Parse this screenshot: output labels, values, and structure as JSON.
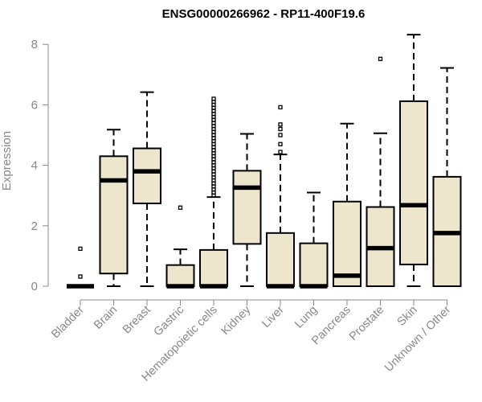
{
  "chart_data": {
    "type": "boxplot",
    "title": "ENSG00000266962 - RP11-400F19.6",
    "xlabel": "",
    "ylabel": "Expression",
    "ylim": [
      0,
      8.4
    ],
    "yticks": [
      0,
      2,
      4,
      6,
      8
    ],
    "box_fill": "#ede6cc",
    "groups": [
      {
        "name": "Bladder",
        "min": 0,
        "q1": 0,
        "median": 0,
        "q3": 0,
        "max": 0,
        "outliers": [
          0.32,
          1.24
        ]
      },
      {
        "name": "Brain",
        "min": 0,
        "q1": 0.42,
        "median": 3.5,
        "q3": 4.3,
        "max": 5.18,
        "outliers": []
      },
      {
        "name": "Breast",
        "min": 0,
        "q1": 2.74,
        "median": 3.8,
        "q3": 4.56,
        "max": 6.42,
        "outliers": []
      },
      {
        "name": "Gastric",
        "min": 0,
        "q1": 0,
        "median": 0,
        "q3": 0.7,
        "max": 1.22,
        "outliers": [
          2.6
        ]
      },
      {
        "name": "Hematopoietic cells",
        "min": 0,
        "q1": 0,
        "median": 0,
        "q3": 1.2,
        "max": 2.95,
        "outliers": [
          3.0,
          3.1,
          3.2,
          3.3,
          3.4,
          3.5,
          3.6,
          3.7,
          3.8,
          3.9,
          4.0,
          4.1,
          4.2,
          4.3,
          4.4,
          4.5,
          4.6,
          4.7,
          4.8,
          4.9,
          5.0,
          5.1,
          5.2,
          5.3,
          5.4,
          5.5,
          5.6,
          5.7,
          5.8,
          5.9,
          6.0,
          6.1,
          6.2
        ]
      },
      {
        "name": "Kidney",
        "min": 0,
        "q1": 1.4,
        "median": 3.26,
        "q3": 3.82,
        "max": 5.04,
        "outliers": []
      },
      {
        "name": "Liver",
        "min": 0,
        "q1": 0,
        "median": 0,
        "q3": 1.76,
        "max": 4.36,
        "outliers": [
          4.44,
          4.7,
          5.0,
          5.2,
          5.35,
          5.92
        ]
      },
      {
        "name": "Lung",
        "min": 0,
        "q1": 0,
        "median": 0,
        "q3": 1.42,
        "max": 3.1,
        "outliers": []
      },
      {
        "name": "Pancreas",
        "min": 0,
        "q1": 0,
        "median": 0.35,
        "q3": 2.8,
        "max": 5.38,
        "outliers": []
      },
      {
        "name": "Prostate",
        "min": 0,
        "q1": 0,
        "median": 1.26,
        "q3": 2.62,
        "max": 5.06,
        "outliers": [
          7.52
        ]
      },
      {
        "name": "Skin",
        "min": 0,
        "q1": 0.72,
        "median": 2.68,
        "q3": 6.12,
        "max": 8.32,
        "outliers": []
      },
      {
        "name": "Unknown / Other",
        "min": 0,
        "q1": 0,
        "median": 1.76,
        "q3": 3.62,
        "max": 7.22,
        "outliers": []
      }
    ]
  }
}
